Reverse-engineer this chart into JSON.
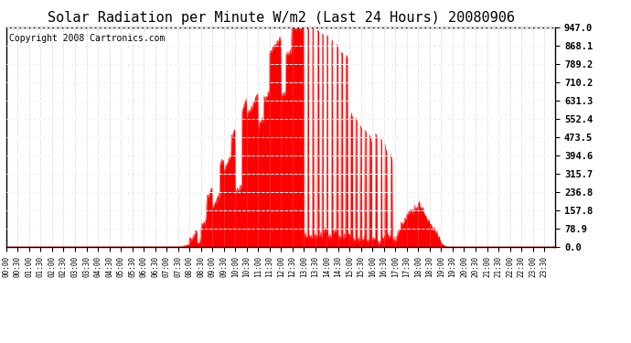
{
  "title": "Solar Radiation per Minute W/m2 (Last 24 Hours) 20080906",
  "copyright": "Copyright 2008 Cartronics.com",
  "yticks": [
    0.0,
    78.9,
    157.8,
    236.8,
    315.7,
    394.6,
    473.5,
    552.4,
    631.3,
    710.2,
    789.2,
    868.1,
    947.0
  ],
  "ymax": 947.0,
  "ymin": 0.0,
  "fill_color": "#FF0000",
  "line_color": "#FF0000",
  "bg_color": "#FFFFFF",
  "grid_color": "#AAAAAA",
  "dashed_line_color": "#FF0000",
  "title_fontsize": 11,
  "copyright_fontsize": 7,
  "xtick_fontsize": 5.5,
  "ytick_fontsize": 7.5,
  "sunrise_minute": 450,
  "sunset_minute": 1155,
  "peak_minute": 773
}
